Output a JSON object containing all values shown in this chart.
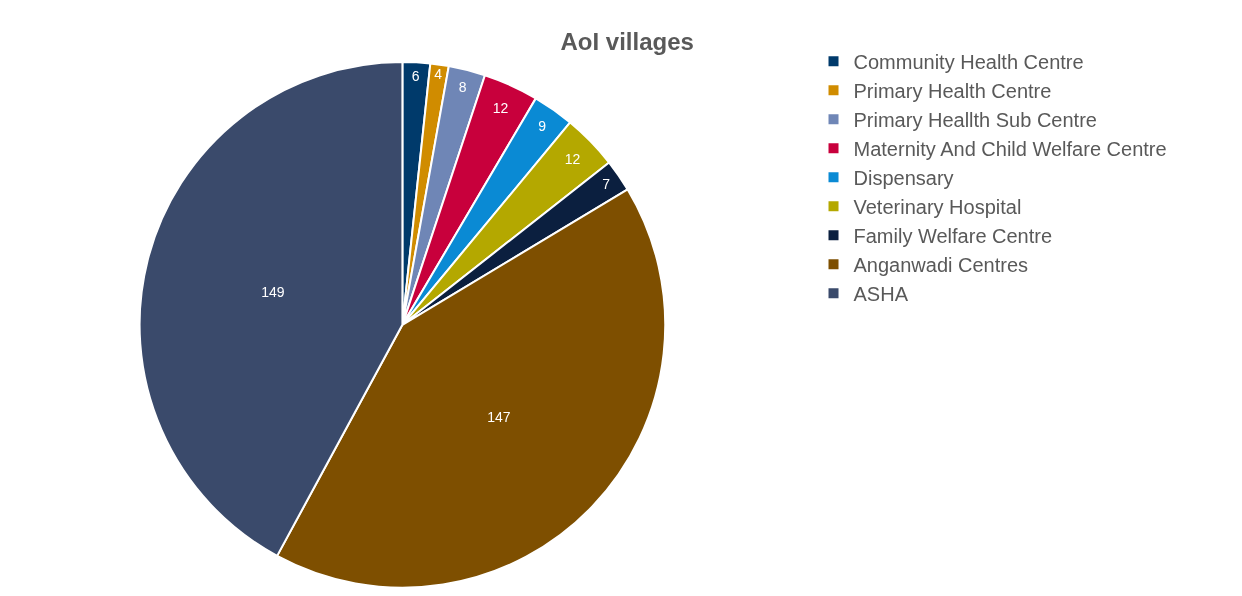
{
  "chart_data": {
    "type": "pie",
    "title": "AoI villages",
    "categories": [
      "Community Health Centre",
      "Primary Health Centre",
      "Primary Heallth Sub Centre",
      "Maternity And Child Welfare Centre",
      "Dispensary",
      "Veterinary Hospital",
      "Family Welfare Centre",
      "Anganwadi Centres",
      "ASHA"
    ],
    "values": [
      6,
      4,
      8,
      12,
      9,
      12,
      7,
      147,
      149
    ],
    "colors": [
      "#003a6b",
      "#d08c00",
      "#6f86b6",
      "#c8003c",
      "#0a8ad4",
      "#b4a800",
      "#0b1f3f",
      "#7e4f00",
      "#3a4a6b"
    ],
    "data_labels": true,
    "legend": "right"
  }
}
